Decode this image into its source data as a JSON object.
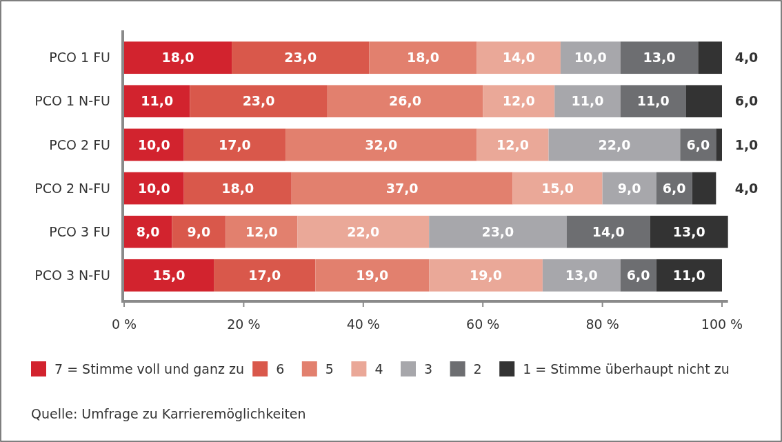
{
  "chart_data": {
    "type": "bar",
    "orientation": "horizontal",
    "stacked": true,
    "legend": "bottom",
    "categories": [
      "PCO 1 FU",
      "PCO 1 N-FU",
      "PCO 2 FU",
      "PCO 2 N-FU",
      "PCO 3 FU",
      "PCO 3 N-FU"
    ],
    "xlim": [
      0,
      101
    ],
    "xticks": [
      {
        "value": 0,
        "label": "0 %"
      },
      {
        "value": 20,
        "label": "20 %"
      },
      {
        "value": 40,
        "label": "40 %"
      },
      {
        "value": 60,
        "label": "60 %"
      },
      {
        "value": 80,
        "label": "80 %"
      },
      {
        "value": 100,
        "label": "100 %"
      }
    ],
    "series": [
      {
        "name": "7 = Stimme voll und ganz zu",
        "color": "#d2232e",
        "values": [
          18,
          11,
          10,
          10,
          8,
          15
        ],
        "value_labels": [
          "18,0",
          "11,0",
          "10,0",
          "10,0",
          "8,0",
          "15,0"
        ]
      },
      {
        "name": "6",
        "color": "#d9584b",
        "values": [
          23,
          23,
          17,
          18,
          9,
          17
        ],
        "value_labels": [
          "23,0",
          "23,0",
          "17,0",
          "18,0",
          "9,0",
          "17,0"
        ]
      },
      {
        "name": "5",
        "color": "#e2806e",
        "values": [
          18,
          26,
          32,
          37,
          12,
          19
        ],
        "value_labels": [
          "18,0",
          "26,0",
          "32,0",
          "37,0",
          "12,0",
          "19,0"
        ]
      },
      {
        "name": "4",
        "color": "#eaa898",
        "values": [
          14,
          12,
          12,
          15,
          22,
          19
        ],
        "value_labels": [
          "14,0",
          "12,0",
          "12,0",
          "15,0",
          "22,0",
          "19,0"
        ]
      },
      {
        "name": "3",
        "color": "#a7a7ab",
        "values": [
          10,
          11,
          22,
          9,
          23,
          13
        ],
        "value_labels": [
          "10,0",
          "11,0",
          "22,0",
          "9,0",
          "23,0",
          "13,0"
        ]
      },
      {
        "name": "2",
        "color": "#6d6e71",
        "values": [
          13,
          11,
          6,
          6,
          14,
          6
        ],
        "value_labels": [
          "13,0",
          "11,0",
          "6,0",
          "6,0",
          "14,0",
          "6,0"
        ]
      },
      {
        "name": "1 = Stimme überhaupt nicht zu",
        "color": "#333333",
        "values": [
          4,
          6,
          1,
          4,
          13,
          11
        ],
        "value_labels": [
          "4,0",
          "6,0",
          "1,0",
          "4,0",
          "13,0",
          "11,0"
        ]
      }
    ],
    "annotations": [
      "Quelle: Umfrage zu Karrieremöglichkeiten"
    ]
  }
}
